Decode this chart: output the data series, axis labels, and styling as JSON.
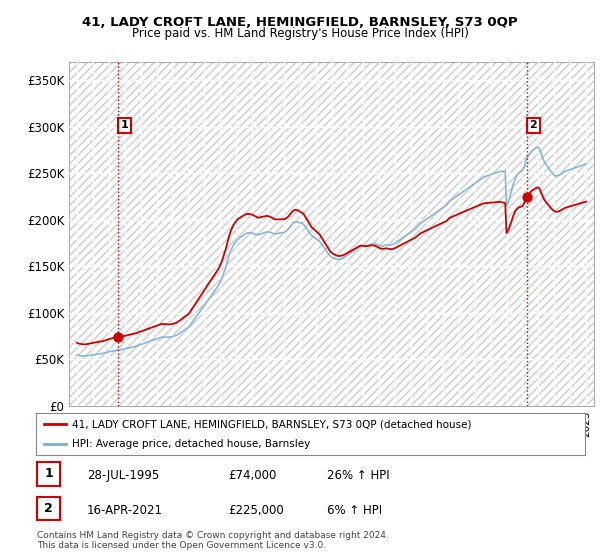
{
  "title1": "41, LADY CROFT LANE, HEMINGFIELD, BARNSLEY, S73 0QP",
  "title2": "Price paid vs. HM Land Registry's House Price Index (HPI)",
  "ylabel_ticks": [
    "£0",
    "£50K",
    "£100K",
    "£150K",
    "£200K",
    "£250K",
    "£300K",
    "£350K"
  ],
  "ylabel_values": [
    0,
    50000,
    100000,
    150000,
    200000,
    250000,
    300000,
    350000
  ],
  "ylim": [
    0,
    370000
  ],
  "sale1_date": "28-JUL-1995",
  "sale1_price": 74000,
  "sale1_hpi_pct": "26%",
  "sale2_date": "16-APR-2021",
  "sale2_price": 225000,
  "sale2_hpi_pct": "6%",
  "legend_line1": "41, LADY CROFT LANE, HEMINGFIELD, BARNSLEY, S73 0QP (detached house)",
  "legend_line2": "HPI: Average price, detached house, Barnsley",
  "footnote": "Contains HM Land Registry data © Crown copyright and database right 2024.\nThis data is licensed under the Open Government Licence v3.0.",
  "hpi_color": "#7bafd4",
  "price_color": "#cc0000",
  "marker_color": "#cc0000",
  "dashed_line_color": "#cc0000",
  "background_color": "#ffffff",
  "x_start_year": 1993,
  "x_end_year": 2025,
  "sale1_x": 1995.58,
  "sale2_x": 2021.29,
  "hpi_monthly_years": [
    1993.0,
    1993.083,
    1993.167,
    1993.25,
    1993.333,
    1993.417,
    1993.5,
    1993.583,
    1993.667,
    1993.75,
    1993.833,
    1993.917,
    1994.0,
    1994.083,
    1994.167,
    1994.25,
    1994.333,
    1994.417,
    1994.5,
    1994.583,
    1994.667,
    1994.75,
    1994.833,
    1994.917,
    1995.0,
    1995.083,
    1995.167,
    1995.25,
    1995.333,
    1995.417,
    1995.5,
    1995.583,
    1995.667,
    1995.75,
    1995.833,
    1995.917,
    1996.0,
    1996.083,
    1996.167,
    1996.25,
    1996.333,
    1996.417,
    1996.5,
    1996.583,
    1996.667,
    1996.75,
    1996.833,
    1996.917,
    1997.0,
    1997.083,
    1997.167,
    1997.25,
    1997.333,
    1997.417,
    1997.5,
    1997.583,
    1997.667,
    1997.75,
    1997.833,
    1997.917,
    1998.0,
    1998.083,
    1998.167,
    1998.25,
    1998.333,
    1998.417,
    1998.5,
    1998.583,
    1998.667,
    1998.75,
    1998.833,
    1998.917,
    1999.0,
    1999.083,
    1999.167,
    1999.25,
    1999.333,
    1999.417,
    1999.5,
    1999.583,
    1999.667,
    1999.75,
    1999.833,
    1999.917,
    2000.0,
    2000.083,
    2000.167,
    2000.25,
    2000.333,
    2000.417,
    2000.5,
    2000.583,
    2000.667,
    2000.75,
    2000.833,
    2000.917,
    2001.0,
    2001.083,
    2001.167,
    2001.25,
    2001.333,
    2001.417,
    2001.5,
    2001.583,
    2001.667,
    2001.75,
    2001.833,
    2001.917,
    2002.0,
    2002.083,
    2002.167,
    2002.25,
    2002.333,
    2002.417,
    2002.5,
    2002.583,
    2002.667,
    2002.75,
    2002.833,
    2002.917,
    2003.0,
    2003.083,
    2003.167,
    2003.25,
    2003.333,
    2003.417,
    2003.5,
    2003.583,
    2003.667,
    2003.75,
    2003.833,
    2003.917,
    2004.0,
    2004.083,
    2004.167,
    2004.25,
    2004.333,
    2004.417,
    2004.5,
    2004.583,
    2004.667,
    2004.75,
    2004.833,
    2004.917,
    2005.0,
    2005.083,
    2005.167,
    2005.25,
    2005.333,
    2005.417,
    2005.5,
    2005.583,
    2005.667,
    2005.75,
    2005.833,
    2005.917,
    2006.0,
    2006.083,
    2006.167,
    2006.25,
    2006.333,
    2006.417,
    2006.5,
    2006.583,
    2006.667,
    2006.75,
    2006.833,
    2006.917,
    2007.0,
    2007.083,
    2007.167,
    2007.25,
    2007.333,
    2007.417,
    2007.5,
    2007.583,
    2007.667,
    2007.75,
    2007.833,
    2007.917,
    2008.0,
    2008.083,
    2008.167,
    2008.25,
    2008.333,
    2008.417,
    2008.5,
    2008.583,
    2008.667,
    2008.75,
    2008.833,
    2008.917,
    2009.0,
    2009.083,
    2009.167,
    2009.25,
    2009.333,
    2009.417,
    2009.5,
    2009.583,
    2009.667,
    2009.75,
    2009.833,
    2009.917,
    2010.0,
    2010.083,
    2010.167,
    2010.25,
    2010.333,
    2010.417,
    2010.5,
    2010.583,
    2010.667,
    2010.75,
    2010.833,
    2010.917,
    2011.0,
    2011.083,
    2011.167,
    2011.25,
    2011.333,
    2011.417,
    2011.5,
    2011.583,
    2011.667,
    2011.75,
    2011.833,
    2011.917,
    2012.0,
    2012.083,
    2012.167,
    2012.25,
    2012.333,
    2012.417,
    2012.5,
    2012.583,
    2012.667,
    2012.75,
    2012.833,
    2012.917,
    2013.0,
    2013.083,
    2013.167,
    2013.25,
    2013.333,
    2013.417,
    2013.5,
    2013.583,
    2013.667,
    2013.75,
    2013.833,
    2013.917,
    2014.0,
    2014.083,
    2014.167,
    2014.25,
    2014.333,
    2014.417,
    2014.5,
    2014.583,
    2014.667,
    2014.75,
    2014.833,
    2014.917,
    2015.0,
    2015.083,
    2015.167,
    2015.25,
    2015.333,
    2015.417,
    2015.5,
    2015.583,
    2015.667,
    2015.75,
    2015.833,
    2015.917,
    2016.0,
    2016.083,
    2016.167,
    2016.25,
    2016.333,
    2016.417,
    2016.5,
    2016.583,
    2016.667,
    2016.75,
    2016.833,
    2016.917,
    2017.0,
    2017.083,
    2017.167,
    2017.25,
    2017.333,
    2017.417,
    2017.5,
    2017.583,
    2017.667,
    2017.75,
    2017.833,
    2017.917,
    2018.0,
    2018.083,
    2018.167,
    2018.25,
    2018.333,
    2018.417,
    2018.5,
    2018.583,
    2018.667,
    2018.75,
    2018.833,
    2018.917,
    2019.0,
    2019.083,
    2019.167,
    2019.25,
    2019.333,
    2019.417,
    2019.5,
    2019.583,
    2019.667,
    2019.75,
    2019.833,
    2019.917,
    2020.0,
    2020.083,
    2020.167,
    2020.25,
    2020.333,
    2020.417,
    2020.5,
    2020.583,
    2020.667,
    2020.75,
    2020.833,
    2020.917,
    2021.0,
    2021.083,
    2021.167,
    2021.25,
    2021.333,
    2021.417,
    2021.5,
    2021.583,
    2021.667,
    2021.75,
    2021.833,
    2021.917,
    2022.0,
    2022.083,
    2022.167,
    2022.25,
    2022.333,
    2022.417,
    2022.5,
    2022.583,
    2022.667,
    2022.75,
    2022.833,
    2022.917,
    2023.0,
    2023.083,
    2023.167,
    2023.25,
    2023.333,
    2023.417,
    2023.5,
    2023.583,
    2023.667,
    2023.75,
    2023.833,
    2023.917,
    2024.0,
    2024.083,
    2024.167,
    2024.25,
    2024.333,
    2024.417,
    2024.5,
    2024.583,
    2024.667,
    2024.75,
    2024.833,
    2024.917,
    2025.0
  ],
  "hpi_monthly_values": [
    55000,
    54500,
    54200,
    54000,
    53800,
    53700,
    53600,
    53800,
    54000,
    54200,
    54500,
    54700,
    55000,
    55200,
    55400,
    55600,
    55800,
    56000,
    56200,
    56400,
    56600,
    57000,
    57400,
    57800,
    58200,
    58500,
    58800,
    59000,
    59200,
    59400,
    59600,
    60000,
    60200,
    60400,
    60700,
    61000,
    61300,
    61600,
    62000,
    62400,
    62800,
    63100,
    63400,
    63700,
    64000,
    64500,
    65000,
    65500,
    66000,
    66500,
    67000,
    67500,
    68000,
    68500,
    69000,
    69500,
    70000,
    70500,
    71000,
    71500,
    72000,
    72500,
    73000,
    73500,
    74000,
    74000,
    74000,
    74000,
    74000,
    74000,
    74000,
    74200,
    74500,
    75000,
    75500,
    76000,
    76800,
    77500,
    78500,
    79500,
    80500,
    81500,
    82500,
    83500,
    84500,
    86000,
    88000,
    90000,
    92000,
    94000,
    96000,
    98000,
    100000,
    102000,
    104000,
    106000,
    108000,
    110000,
    112000,
    114000,
    116000,
    118000,
    120000,
    122000,
    124000,
    126000,
    128000,
    130000,
    133000,
    136000,
    140000,
    144000,
    148000,
    153000,
    158000,
    163000,
    167000,
    170000,
    173000,
    175000,
    177000,
    179000,
    180000,
    181000,
    182000,
    183000,
    184000,
    185000,
    185500,
    186000,
    186000,
    186000,
    186000,
    185500,
    185000,
    184500,
    184000,
    184000,
    184500,
    185000,
    185500,
    186000,
    186500,
    187000,
    187000,
    187000,
    186500,
    186000,
    185500,
    185000,
    185000,
    185200,
    185500,
    185800,
    186000,
    186200,
    186500,
    187000,
    188000,
    189500,
    191000,
    193000,
    195000,
    196500,
    197500,
    198000,
    198000,
    197500,
    197000,
    196500,
    196000,
    195000,
    193000,
    191000,
    189000,
    187000,
    185000,
    183000,
    182000,
    181000,
    180000,
    179000,
    178000,
    177000,
    175000,
    173000,
    171000,
    169000,
    167000,
    165000,
    163000,
    161000,
    160000,
    159000,
    158500,
    158000,
    157500,
    157500,
    157500,
    158000,
    158500,
    159000,
    160000,
    161000,
    162000,
    163000,
    164000,
    165000,
    166000,
    167000,
    168000,
    169000,
    170000,
    171000,
    172000,
    172000,
    172000,
    172000,
    172000,
    172500,
    173000,
    173500,
    174000,
    174000,
    174000,
    174000,
    173500,
    173000,
    172500,
    172000,
    172000,
    172000,
    172500,
    173000,
    173000,
    173000,
    173000,
    173000,
    173500,
    174000,
    175000,
    176000,
    177000,
    178000,
    179000,
    180000,
    181000,
    182000,
    183000,
    184000,
    185000,
    186000,
    187000,
    188000,
    189000,
    190000,
    191500,
    193000,
    194500,
    196000,
    197000,
    198000,
    199000,
    200000,
    201000,
    202000,
    203000,
    204000,
    205000,
    206000,
    207000,
    208000,
    209000,
    210000,
    211000,
    212000,
    213000,
    214000,
    215000,
    216000,
    218000,
    220000,
    221000,
    222000,
    223000,
    224000,
    225000,
    226000,
    227000,
    228000,
    229000,
    230000,
    231000,
    232000,
    233000,
    234000,
    235000,
    236000,
    237000,
    238000,
    239000,
    240000,
    241000,
    242000,
    243000,
    244000,
    245000,
    246000,
    246500,
    247000,
    247500,
    248000,
    248500,
    249000,
    249500,
    250000,
    250500,
    251000,
    251500,
    252000,
    252000,
    252000,
    252000,
    252000,
    215000,
    218000,
    222000,
    227000,
    232000,
    238000,
    242000,
    246000,
    248000,
    250000,
    251000,
    252000,
    253000,
    256000,
    260000,
    265000,
    268000,
    270000,
    272000,
    274000,
    275000,
    276000,
    277000,
    278000,
    278000,
    276000,
    272000,
    268000,
    264000,
    261000,
    259000,
    257000,
    255000,
    253000,
    251000,
    249000,
    248000,
    247000,
    247000,
    247500,
    248000,
    249000,
    250000,
    251000,
    252000,
    252500,
    253000,
    253500,
    254000,
    254500,
    255000,
    255500,
    256000,
    256500,
    257000,
    257500,
    258000,
    258500,
    259000,
    259500,
    260000,
    260500,
    261000,
    261500,
    262000,
    262500,
    263000,
    263500,
    264000,
    264500,
    265000,
    265500,
    266000
  ]
}
